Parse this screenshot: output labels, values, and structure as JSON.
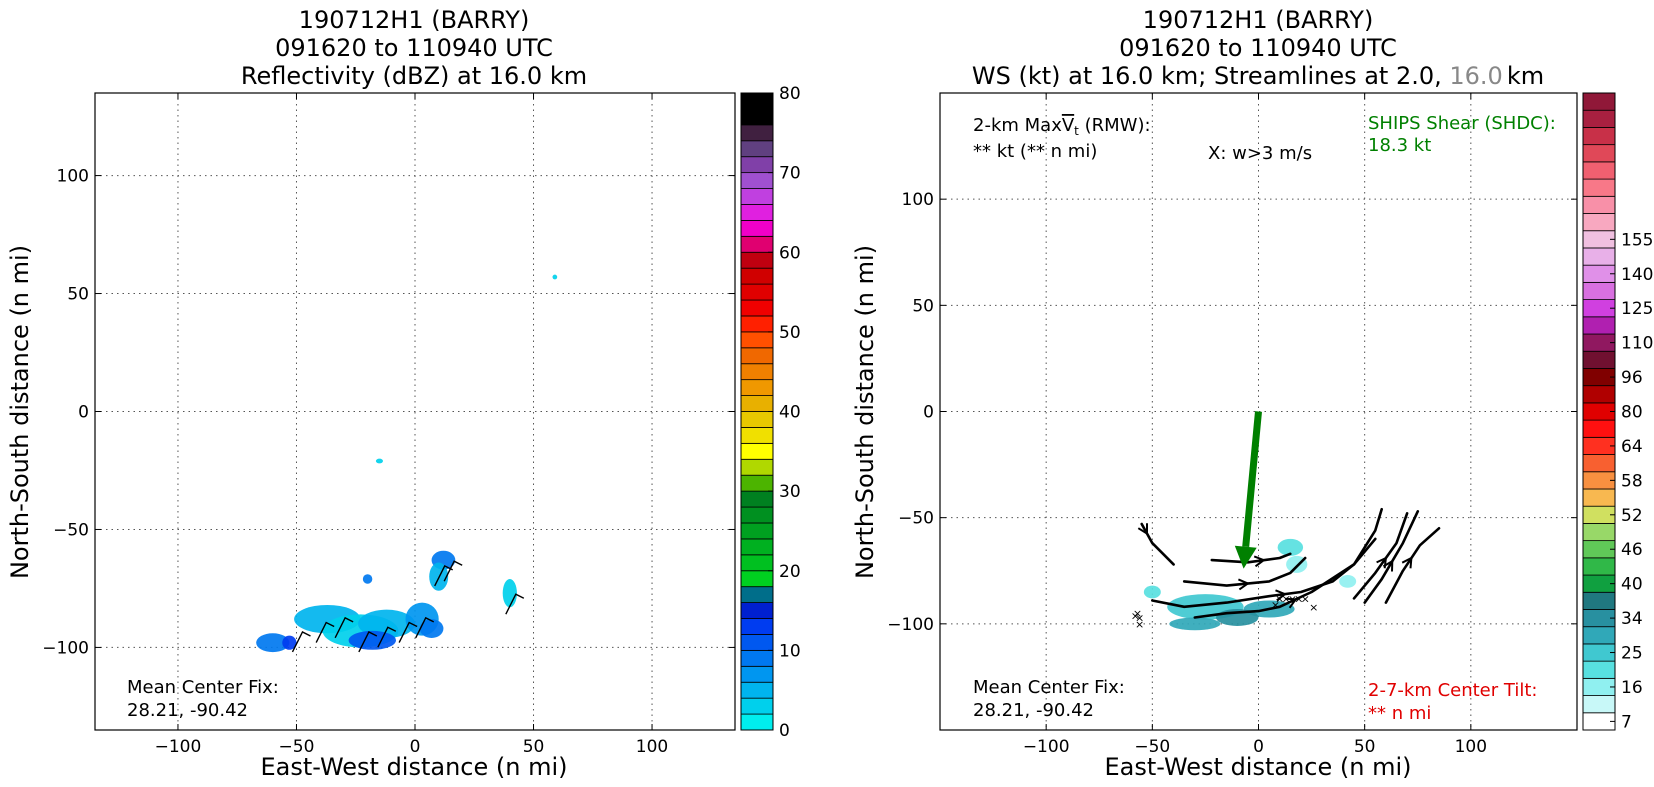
{
  "chart_data": [
    {
      "type": "heatmap",
      "title": [
        "190712H1 (BARRY)",
        "091620 to 110940 UTC",
        "Reflectivity (dBZ) at 16.0 km"
      ],
      "xlabel": "East-West distance (n mi)",
      "ylabel": "North-South distance (n mi)",
      "xlim": [
        -135,
        135
      ],
      "ylim": [
        -135,
        135
      ],
      "xticks": [
        -100,
        -50,
        0,
        50,
        100
      ],
      "yticks": [
        -100,
        -50,
        0,
        50,
        100
      ],
      "xtick_labels": [
        "−100",
        "−50",
        "0",
        "50",
        "100"
      ],
      "ytick_labels": [
        "−100",
        "−50",
        "0",
        "50",
        "100"
      ],
      "grid": true,
      "colorbar": {
        "min": 0,
        "max": 80,
        "step": 2.5,
        "ticks": [
          0,
          10,
          20,
          30,
          40,
          50,
          60,
          70,
          80
        ],
        "colors": [
          "#00eeee",
          "#00d0ec",
          "#00b4ee",
          "#0096f0",
          "#0078f0",
          "#0058f0",
          "#003cf0",
          "#0020d0",
          "#006e8a",
          "#00d020",
          "#00c020",
          "#00b020",
          "#00a020",
          "#009020",
          "#008020",
          "#4cb400",
          "#b0d800",
          "#ffff00",
          "#f0e000",
          "#e8c800",
          "#e8b000",
          "#f09800",
          "#f08000",
          "#f06800",
          "#ff5000",
          "#ff2000",
          "#f00000",
          "#e00000",
          "#d00000",
          "#c00010",
          "#e00070",
          "#f000c8",
          "#e020e0",
          "#c040e0",
          "#a050d0",
          "#8040a8",
          "#604080",
          "#402040",
          "#000000",
          "#000000"
        ]
      },
      "blobs": [
        {
          "x": -37,
          "y": -88,
          "rx": 14,
          "ry": 6,
          "value": 6
        },
        {
          "x": -23,
          "y": -93,
          "rx": 16,
          "ry": 7,
          "value": 4
        },
        {
          "x": -12,
          "y": -90,
          "rx": 12,
          "ry": 6,
          "value": 6
        },
        {
          "x": 3,
          "y": -88,
          "rx": 7,
          "ry": 7,
          "value": 8
        },
        {
          "x": 7,
          "y": -92,
          "rx": 5,
          "ry": 4,
          "value": 12
        },
        {
          "x": -60,
          "y": -98,
          "rx": 7,
          "ry": 4,
          "value": 12
        },
        {
          "x": -53,
          "y": -98,
          "rx": 3,
          "ry": 3,
          "value": 15
        },
        {
          "x": -18,
          "y": -97,
          "rx": 10,
          "ry": 4,
          "value": 13
        },
        {
          "x": 12,
          "y": -63,
          "rx": 5,
          "ry": 4,
          "value": 12
        },
        {
          "x": 10,
          "y": -70,
          "rx": 4,
          "ry": 6,
          "value": 6
        },
        {
          "x": 40,
          "y": -77,
          "rx": 3,
          "ry": 6,
          "value": 4
        },
        {
          "x": -20,
          "y": -71,
          "rx": 2,
          "ry": 2,
          "value": 10
        },
        {
          "x": 59,
          "y": 57,
          "rx": 1,
          "ry": 1,
          "value": 4
        },
        {
          "x": -15,
          "y": -21,
          "rx": 1.5,
          "ry": 1,
          "value": 4
        }
      ],
      "annotations": {
        "center_label": "Mean Center Fix:",
        "center_value": "28.21, -90.42"
      }
    },
    {
      "type": "heatmap",
      "title": [
        "190712H1 (BARRY)",
        "091620 to 110940 UTC"
      ],
      "title_line3_a": "WS (kt) at 16.0 km; Streamlines at 2.0, ",
      "title_line3_b": "16.0",
      "title_line3_c": "km",
      "title_line3_b_color": "#888888",
      "xlabel": "East-West distance (n mi)",
      "ylabel": "North-South distance (n mi)",
      "xlim": [
        -150,
        150
      ],
      "ylim": [
        -150,
        150
      ],
      "xticks": [
        -100,
        -50,
        0,
        50,
        100
      ],
      "yticks": [
        -100,
        -50,
        0,
        50,
        100
      ],
      "xtick_labels": [
        "−100",
        "−50",
        "0",
        "50",
        "100"
      ],
      "ytick_labels": [
        "−100",
        "−50",
        "0",
        "50",
        "100"
      ],
      "grid": true,
      "colorbar": {
        "ticks": [
          7,
          16,
          25,
          34,
          40,
          46,
          52,
          58,
          64,
          80,
          96,
          110,
          125,
          140,
          155
        ],
        "tick_positions": [
          0.5,
          2.5,
          4.5,
          6.5,
          8.5,
          10.5,
          12.5,
          14.5,
          16.5,
          18.5,
          20.5,
          22.5,
          24.5,
          26.5,
          28.5
        ],
        "colors": [
          "#ffffff",
          "#c8f8f8",
          "#90f0f0",
          "#58e0e0",
          "#40c8d0",
          "#30a8b8",
          "#2890a0",
          "#207880",
          "#10a040",
          "#30b848",
          "#60c858",
          "#98d868",
          "#d0e060",
          "#f8b850",
          "#f89040",
          "#f86030",
          "#ff3020",
          "#ff1010",
          "#e00000",
          "#b00000",
          "#800000",
          "#701030",
          "#901860",
          "#b020b0",
          "#d040e0",
          "#d870e0",
          "#e090e8",
          "#e8b0e8",
          "#f0c0e0",
          "#f8a8c0",
          "#f890a8",
          "#f87888",
          "#f06070",
          "#e04858",
          "#c83048",
          "#a82040",
          "#901838"
        ]
      },
      "blobs": [
        {
          "x": -25,
          "y": -92,
          "rx": 18,
          "ry": 6,
          "value": 18
        },
        {
          "x": 5,
          "y": -93,
          "rx": 12,
          "ry": 4,
          "value": 20
        },
        {
          "x": -30,
          "y": -100,
          "rx": 12,
          "ry": 3,
          "value": 22
        },
        {
          "x": -10,
          "y": -97,
          "rx": 10,
          "ry": 4,
          "value": 25
        },
        {
          "x": 15,
          "y": -64,
          "rx": 6,
          "ry": 4,
          "value": 12
        },
        {
          "x": 18,
          "y": -72,
          "rx": 5,
          "ry": 4,
          "value": 10
        },
        {
          "x": 42,
          "y": -80,
          "rx": 4,
          "ry": 3,
          "value": 10
        },
        {
          "x": -50,
          "y": -85,
          "rx": 4,
          "ry": 3,
          "value": 12
        }
      ],
      "streamlines": [
        [
          [
            -55,
            -53
          ],
          [
            -50,
            -62
          ],
          [
            -40,
            -72
          ]
        ],
        [
          [
            -22,
            -70
          ],
          [
            -5,
            -71
          ],
          [
            10,
            -69
          ],
          [
            15,
            -67
          ]
        ],
        [
          [
            -35,
            -80
          ],
          [
            -15,
            -82
          ],
          [
            5,
            -80
          ],
          [
            15,
            -76
          ],
          [
            22,
            -69
          ]
        ],
        [
          [
            -50,
            -89
          ],
          [
            -35,
            -92
          ],
          [
            -15,
            -90
          ],
          [
            5,
            -87
          ],
          [
            20,
            -85
          ],
          [
            35,
            -80
          ],
          [
            45,
            -72
          ],
          [
            55,
            -60
          ]
        ],
        [
          [
            -30,
            -97
          ],
          [
            -15,
            -95
          ],
          [
            0,
            -94
          ],
          [
            10,
            -92
          ],
          [
            25,
            -85
          ],
          [
            45,
            -72
          ],
          [
            55,
            -56
          ],
          [
            58,
            -46
          ]
        ],
        [
          [
            45,
            -88
          ],
          [
            55,
            -76
          ],
          [
            65,
            -62
          ],
          [
            70,
            -48
          ]
        ],
        [
          [
            50,
            -90
          ],
          [
            58,
            -79
          ],
          [
            68,
            -62
          ],
          [
            75,
            -47
          ]
        ],
        [
          [
            60,
            -90
          ],
          [
            68,
            -75
          ],
          [
            76,
            -63
          ],
          [
            85,
            -55
          ]
        ]
      ],
      "shear_arrow": {
        "from": [
          0,
          0
        ],
        "to": [
          -7,
          -74
        ],
        "color": "#008000"
      },
      "x_markers": [
        [
          -57,
          -95
        ],
        [
          -56,
          -97
        ],
        [
          -58,
          -96
        ],
        [
          -56,
          -100
        ],
        [
          10,
          -88
        ],
        [
          13,
          -88
        ],
        [
          16,
          -88
        ],
        [
          19,
          -88
        ],
        [
          22,
          -88
        ],
        [
          8,
          -91
        ],
        [
          26,
          -92
        ]
      ],
      "annotations": {
        "rmw_line1_a": "2-km Max",
        "rmw_line1_v": "V",
        "rmw_line1_sub": "t",
        "rmw_line1_b": " (RMW):",
        "rmw_line2": "** kt (** n mi)",
        "w_label": "X: w>3 m/s",
        "shear_label": "SHIPS Shear (SHDC):",
        "shear_value": "18.3 kt",
        "center_label": "Mean Center Fix:",
        "center_value": "28.21, -90.42",
        "tilt_label": "2-7-km Center Tilt:",
        "tilt_value": "** n mi"
      }
    }
  ]
}
